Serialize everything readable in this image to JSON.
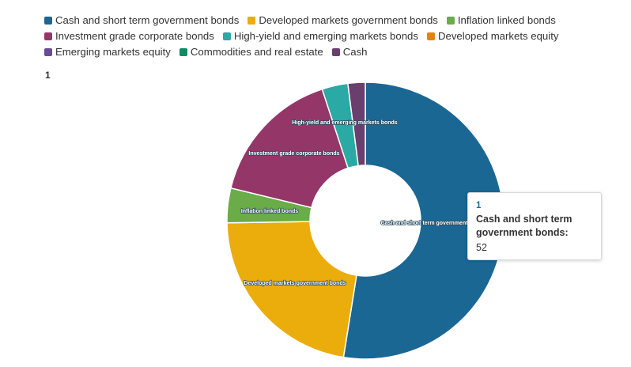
{
  "chart_data": {
    "type": "pie",
    "subtype": "donut",
    "series_name": "1",
    "legend_position": "top",
    "categories": [
      "Cash and short term government bonds",
      "Developed markets government bonds",
      "Inflation linked bonds",
      "Investment grade corporate bonds",
      "High-yield and emerging markets bonds",
      "Developed markets equity",
      "Emerging markets equity",
      "Commodities and real estate",
      "Cash"
    ],
    "values": [
      52,
      22,
      4,
      16,
      3,
      0,
      0,
      0,
      2
    ],
    "colors": [
      "#1b6793",
      "#ebad0c",
      "#6aac48",
      "#953668",
      "#2aa9a5",
      "#e48310",
      "#6b4b98",
      "#0f8b63",
      "#6a3f6e"
    ],
    "slice_labels": [
      "Cash and short term government bonds",
      "Developed markets government bonds",
      "Inflation linked bonds",
      "Investment grade corporate bonds",
      "High-yield and emerging markets bonds",
      "",
      "",
      "",
      ""
    ]
  },
  "tooltip": {
    "series": "1",
    "category": "Cash and short term government bonds:",
    "value": "52"
  }
}
